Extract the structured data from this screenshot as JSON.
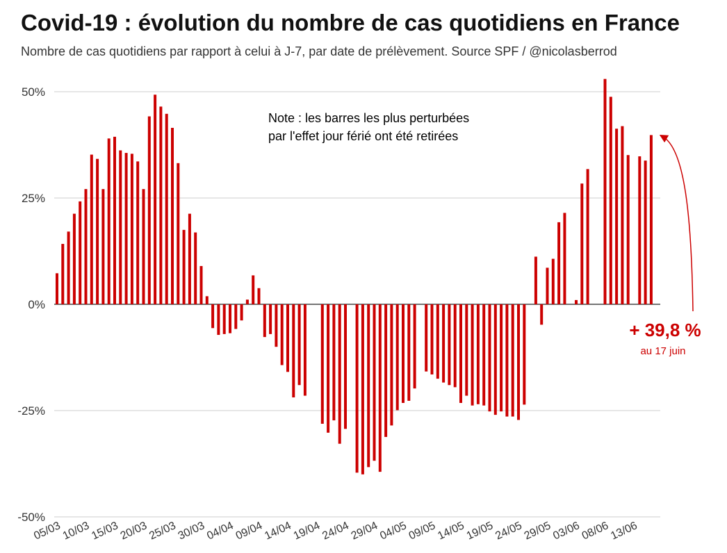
{
  "chart_data": {
    "type": "bar",
    "title": "Covid-19 : évolution du nombre de cas quotidiens en France",
    "subtitle": "Nombre de cas quotidiens par rapport à celui à J-7, par date de prélèvement. Source SPF / @nicolasberrod",
    "ylim": [
      -50,
      50
    ],
    "yticks": [
      50,
      25,
      0,
      -25,
      -50
    ],
    "ytick_labels": [
      "50%",
      "25%",
      "0%",
      "-25%",
      "-50%"
    ],
    "xtick_labels": [
      "05/03",
      "10/03",
      "15/03",
      "20/03",
      "25/03",
      "30/03",
      "04/04",
      "09/04",
      "14/04",
      "19/04",
      "24/04",
      "29/04",
      "04/05",
      "09/05",
      "14/05",
      "19/05",
      "24/05",
      "29/05",
      "03/06",
      "08/06",
      "13/06"
    ],
    "start_date": "05/03",
    "values": [
      7.3,
      14.2,
      17.1,
      21.3,
      24.2,
      27.1,
      35.2,
      34.2,
      27.1,
      39.0,
      39.4,
      36.2,
      35.6,
      35.4,
      33.6,
      27.1,
      44.2,
      49.3,
      46.5,
      44.8,
      41.5,
      33.2,
      17.5,
      21.3,
      16.9,
      9.0,
      1.9,
      -5.6,
      -7.2,
      -7.0,
      -6.8,
      -5.8,
      -3.8,
      1.1,
      6.8,
      3.8,
      -7.7,
      -7.0,
      -10.0,
      -14.3,
      -15.9,
      -21.9,
      -19.0,
      -21.5,
      null,
      null,
      -28.1,
      -30.2,
      -27.3,
      -32.8,
      -29.3,
      null,
      -39.6,
      -40.0,
      -38.3,
      -36.8,
      -39.4,
      -31.2,
      -28.5,
      -24.9,
      -23.2,
      -22.7,
      -19.8,
      null,
      -15.8,
      -16.5,
      -17.5,
      -18.4,
      -19.0,
      -19.5,
      -23.2,
      -21.5,
      -23.8,
      -23.5,
      -23.8,
      -25.2,
      -26.0,
      -25.2,
      -26.4,
      -26.4,
      -27.2,
      -23.6,
      null,
      11.2,
      -4.8,
      8.6,
      10.7,
      19.3,
      21.5,
      null,
      1.0,
      28.4,
      31.8,
      null,
      null,
      53.0,
      48.8,
      41.3,
      41.9,
      35.1,
      null,
      34.8,
      33.8,
      39.8
    ],
    "color": "#cc0000",
    "note": [
      "Note : les barres les plus perturbées",
      "par l'effet jour férié ont été retirées"
    ],
    "annotation": {
      "value_label": "+ 39,8 %",
      "date_label": "au 17 juin",
      "color": "#cc0000"
    }
  }
}
